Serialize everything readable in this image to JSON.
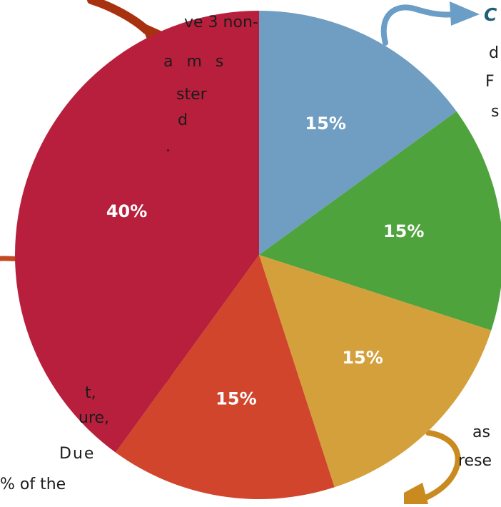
{
  "chart_data": {
    "type": "pie",
    "slices": [
      {
        "value": 15,
        "label": "15%",
        "color": "#6f9ec2"
      },
      {
        "value": 15,
        "label": "15%",
        "color": "#4ea33c"
      },
      {
        "value": 15,
        "label": "15%",
        "color": "#d4a03c"
      },
      {
        "value": 15,
        "label": "15%",
        "color": "#d0452c"
      },
      {
        "value": 40,
        "label": "40%",
        "color": "#b81f3c"
      }
    ],
    "start": "12 o'clock",
    "direction": "clockwise"
  },
  "text_fragments": {
    "left": [
      "ve 3 non-",
      "a m s",
      "ster",
      "d",
      ".",
      "t,",
      "ure,",
      "Due",
      "% of the"
    ],
    "right": [
      "C",
      "d",
      "F",
      "s",
      "as",
      "rese"
    ]
  },
  "arrows": {
    "top": "#a8320f",
    "left": "#c24a22",
    "top_right": "#6a9ec7",
    "bottom_right": "#c98a1f"
  }
}
